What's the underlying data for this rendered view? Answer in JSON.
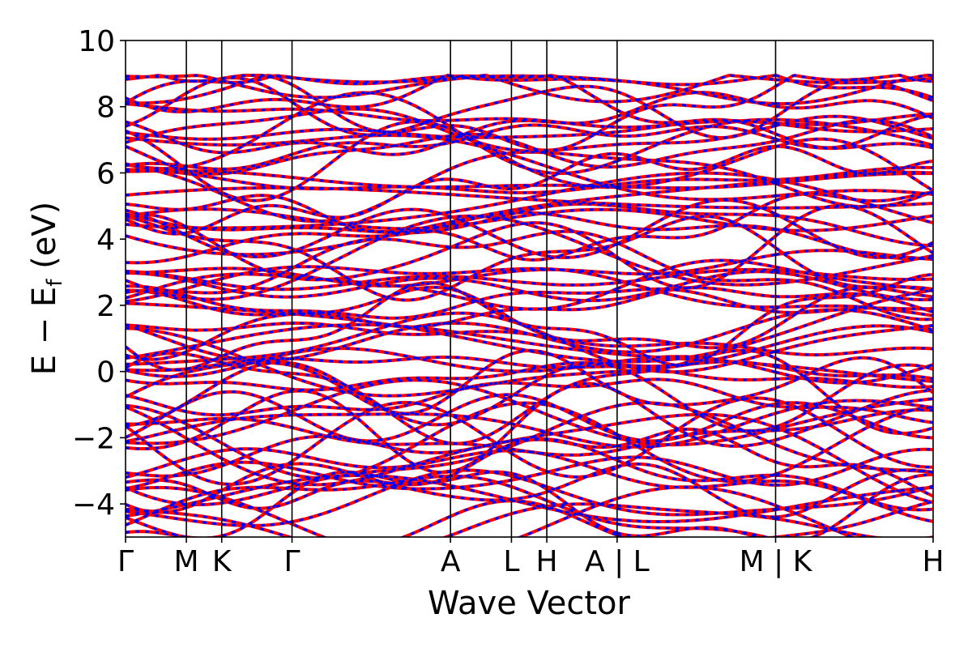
{
  "chart_data": {
    "type": "line",
    "title": "",
    "xlabel": "Wave Vector",
    "ylabel_parts": {
      "main": "E − E",
      "sub": "f",
      "unit": " (eV)"
    },
    "ylim": [
      -5,
      10
    ],
    "y_ticks": [
      {
        "value": -4,
        "label": "−4"
      },
      {
        "value": -2,
        "label": "−2"
      },
      {
        "value": 0,
        "label": "0"
      },
      {
        "value": 2,
        "label": "2"
      },
      {
        "value": 4,
        "label": "4"
      },
      {
        "value": 6,
        "label": "6"
      },
      {
        "value": 8,
        "label": "8"
      },
      {
        "value": 10,
        "label": "10"
      }
    ],
    "k_path_positions": [
      0,
      0.449,
      0.71,
      1.229,
      2.399,
      2.849,
      3.11,
      3.629,
      4.799,
      5.962
    ],
    "k_path_labels": [
      "Γ",
      "M",
      "K",
      "Γ",
      "A",
      "L",
      "H",
      "A | L",
      "M | K",
      "H"
    ],
    "path_breaks": [
      3.629,
      4.799
    ],
    "grid": false,
    "legend": "none",
    "series_colors": {
      "solid": "#ff0000",
      "dashed": "#0000ff"
    },
    "series": [
      {
        "style": "solid",
        "color": "#ff0000"
      },
      {
        "style": "dashed",
        "color": "#0000ff"
      }
    ],
    "band_count": 74,
    "band_energy_min": -5.0,
    "band_energy_max": 8.95
  }
}
